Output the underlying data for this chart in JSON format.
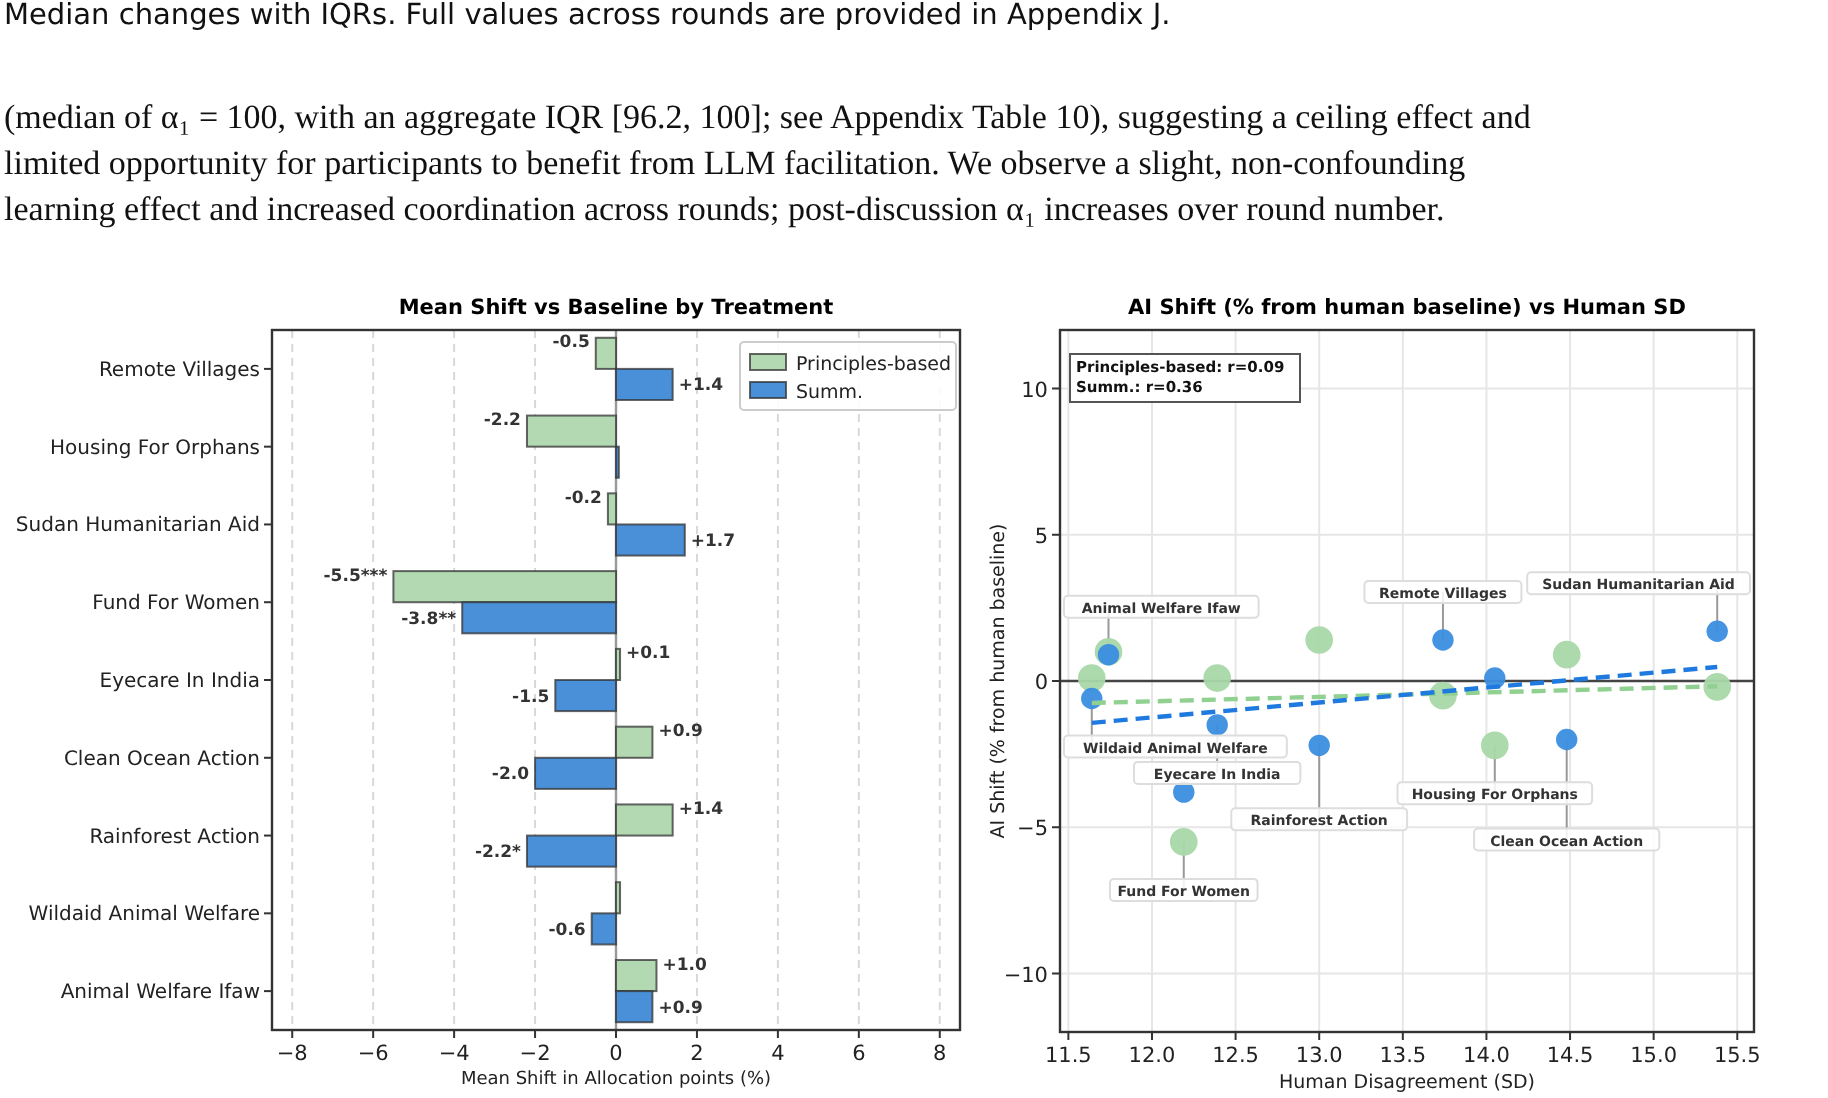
{
  "chart_data": [
    {
      "type": "other",
      "annotations": [
        "Median changes with IQRs. Full values across rounds are provided in Appendix J.",
        "(median of α₁ = 100, with an aggregate IQR [96.2, 100]; see Appendix Table 10), suggesting a ceiling effect and",
        "limited opportunity for participants to benefit from LLM facilitation. We observe a slight, non-confounding",
        "learning effect and increased coordination across rounds; post-discussion α₁ increases over round number."
      ]
    },
    {
      "type": "bar",
      "orientation": "horizontal",
      "title": "Mean Shift vs Baseline by Treatment",
      "xlabel": "Mean Shift in Allocation points (%)",
      "categories": [
        "Remote Villages",
        "Housing For Orphans",
        "Sudan Humanitarian Aid",
        "Fund For Women",
        "Eyecare In India",
        "Clean Ocean Action",
        "Rainforest Action",
        "Wildaid Animal Welfare",
        "Animal Welfare Ifaw"
      ],
      "series": [
        {
          "name": "Principles-based",
          "color": "#b3d9b3",
          "values": [
            -0.5,
            -2.2,
            -0.2,
            -5.5,
            0.1,
            0.9,
            1.4,
            0.1,
            1.0
          ],
          "value_labels": [
            "-0.5",
            "-2.2",
            "-0.2",
            "-5.5***",
            "+0.1",
            "+0.9",
            "+1.4",
            null,
            "+1.0"
          ]
        },
        {
          "name": "Summ.",
          "color": "#4a90d9",
          "values": [
            1.4,
            0.07,
            1.7,
            -3.8,
            -1.5,
            -2.0,
            -2.2,
            -0.6,
            0.9
          ],
          "value_labels": [
            "+1.4",
            null,
            "+1.7",
            "-3.8**",
            "-1.5",
            "-2.0",
            "-2.2*",
            "-0.6",
            "+0.9"
          ]
        }
      ],
      "xlim": [
        -8.5,
        8.5
      ],
      "xticks": [
        {
          "value": -8,
          "label": "−8"
        },
        {
          "value": -6,
          "label": "−6"
        },
        {
          "value": -4,
          "label": "−4"
        },
        {
          "value": -2,
          "label": "−2"
        },
        0,
        2,
        4,
        6,
        8
      ],
      "grid": "x",
      "legend": "top right",
      "ref_lines": [
        {
          "axis": "x",
          "value": 0,
          "color": "#999999"
        }
      ]
    },
    {
      "type": "scatter",
      "title": "AI Shift (% from human baseline) vs Human SD",
      "xlabel": "Human Disagreement (SD)",
      "ylabel": "AI Shift (% from human baseline)",
      "xlim": [
        11.45,
        15.6
      ],
      "ylim": [
        -12,
        12
      ],
      "xticks": [
        11.5,
        {
          "value": 12,
          "label": "12.0"
        },
        12.5,
        {
          "value": 13,
          "label": "13.0"
        },
        13.5,
        {
          "value": 14,
          "label": "14.0"
        },
        14.5,
        {
          "value": 15,
          "label": "15.0"
        },
        15.5
      ],
      "yticks": [
        {
          "value": -10,
          "label": "−10"
        },
        {
          "value": -5,
          "label": "−5"
        },
        0,
        5,
        10
      ],
      "grid": true,
      "series": [
        {
          "type": "scatter",
          "marker": "circle",
          "color": "#a8d8a8",
          "x": [
            11.64,
            11.74,
            12.19,
            12.39,
            13.0,
            13.74,
            14.05,
            14.48,
            15.38
          ],
          "values": [
            0.1,
            1.0,
            -5.5,
            0.1,
            1.4,
            -0.5,
            -2.2,
            0.9,
            -0.2
          ]
        },
        {
          "type": "scatter",
          "marker": "circle",
          "color": "#3a8ee0",
          "x": [
            11.64,
            11.74,
            12.19,
            12.39,
            13.0,
            13.74,
            14.05,
            14.48,
            15.38
          ],
          "values": [
            -0.6,
            0.9,
            -3.8,
            -1.5,
            -2.2,
            1.4,
            0.1,
            -2.0,
            1.7
          ]
        },
        {
          "type": "line",
          "line_style": "dashed",
          "color": "#90d090",
          "x": [
            11.64,
            15.38
          ],
          "values": [
            -0.75,
            -0.18
          ]
        },
        {
          "type": "line",
          "line_style": "dashed",
          "color": "#1f7ae0",
          "x": [
            11.64,
            15.38
          ],
          "values": [
            -1.43,
            0.48
          ]
        }
      ],
      "ref_lines": [
        {
          "axis": "y",
          "value": 0,
          "color": "#444444"
        }
      ],
      "annotations": [
        "Principles-based: r=0.09",
        "Summ.: r=0.36",
        {
          "text": "Wildaid Animal Welfare",
          "x": 11.64,
          "y": -0.6
        },
        {
          "text": "Animal Welfare Ifaw",
          "x": 11.74,
          "y": 0.9
        },
        {
          "text": "Fund For Women",
          "x": 12.19,
          "y": -5.5
        },
        {
          "text": "Eyecare In India",
          "x": 12.39,
          "y": -1.5
        },
        {
          "text": "Rainforest Action",
          "x": 13.0,
          "y": -2.2
        },
        {
          "text": "Remote Villages",
          "x": 13.74,
          "y": 1.4
        },
        {
          "text": "Housing For Orphans",
          "x": 14.05,
          "y": -2.2
        },
        {
          "text": "Clean Ocean Action",
          "x": 14.48,
          "y": -2.0
        },
        {
          "text": "Sudan Humanitarian Aid",
          "x": 15.38,
          "y": 1.7
        }
      ]
    }
  ]
}
